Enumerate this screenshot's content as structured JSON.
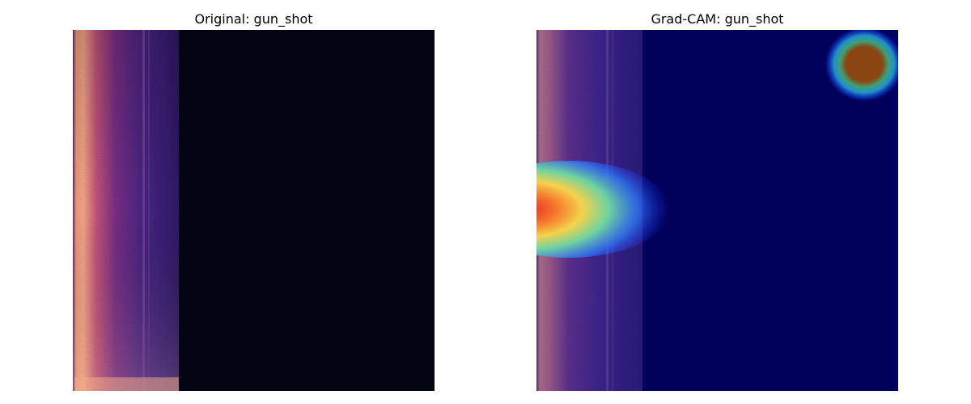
{
  "panels": {
    "original": {
      "title": "Original: gun_shot",
      "background_color": "#020414"
    },
    "gradcam": {
      "title": "Grad-CAM: gun_shot",
      "background_color": "#00005a"
    }
  },
  "colors": {
    "spectrogram_hot": "#fbb08a",
    "spectrogram_mid": "#b5477a",
    "spectrogram_low": "#3b1b78",
    "heatmap_peak": "#d7191c",
    "heatmap_high": "#fdae61",
    "heatmap_mid": "#abdda4",
    "heatmap_low": "#2b83ba",
    "heatmap_corner": "#8b4513"
  }
}
